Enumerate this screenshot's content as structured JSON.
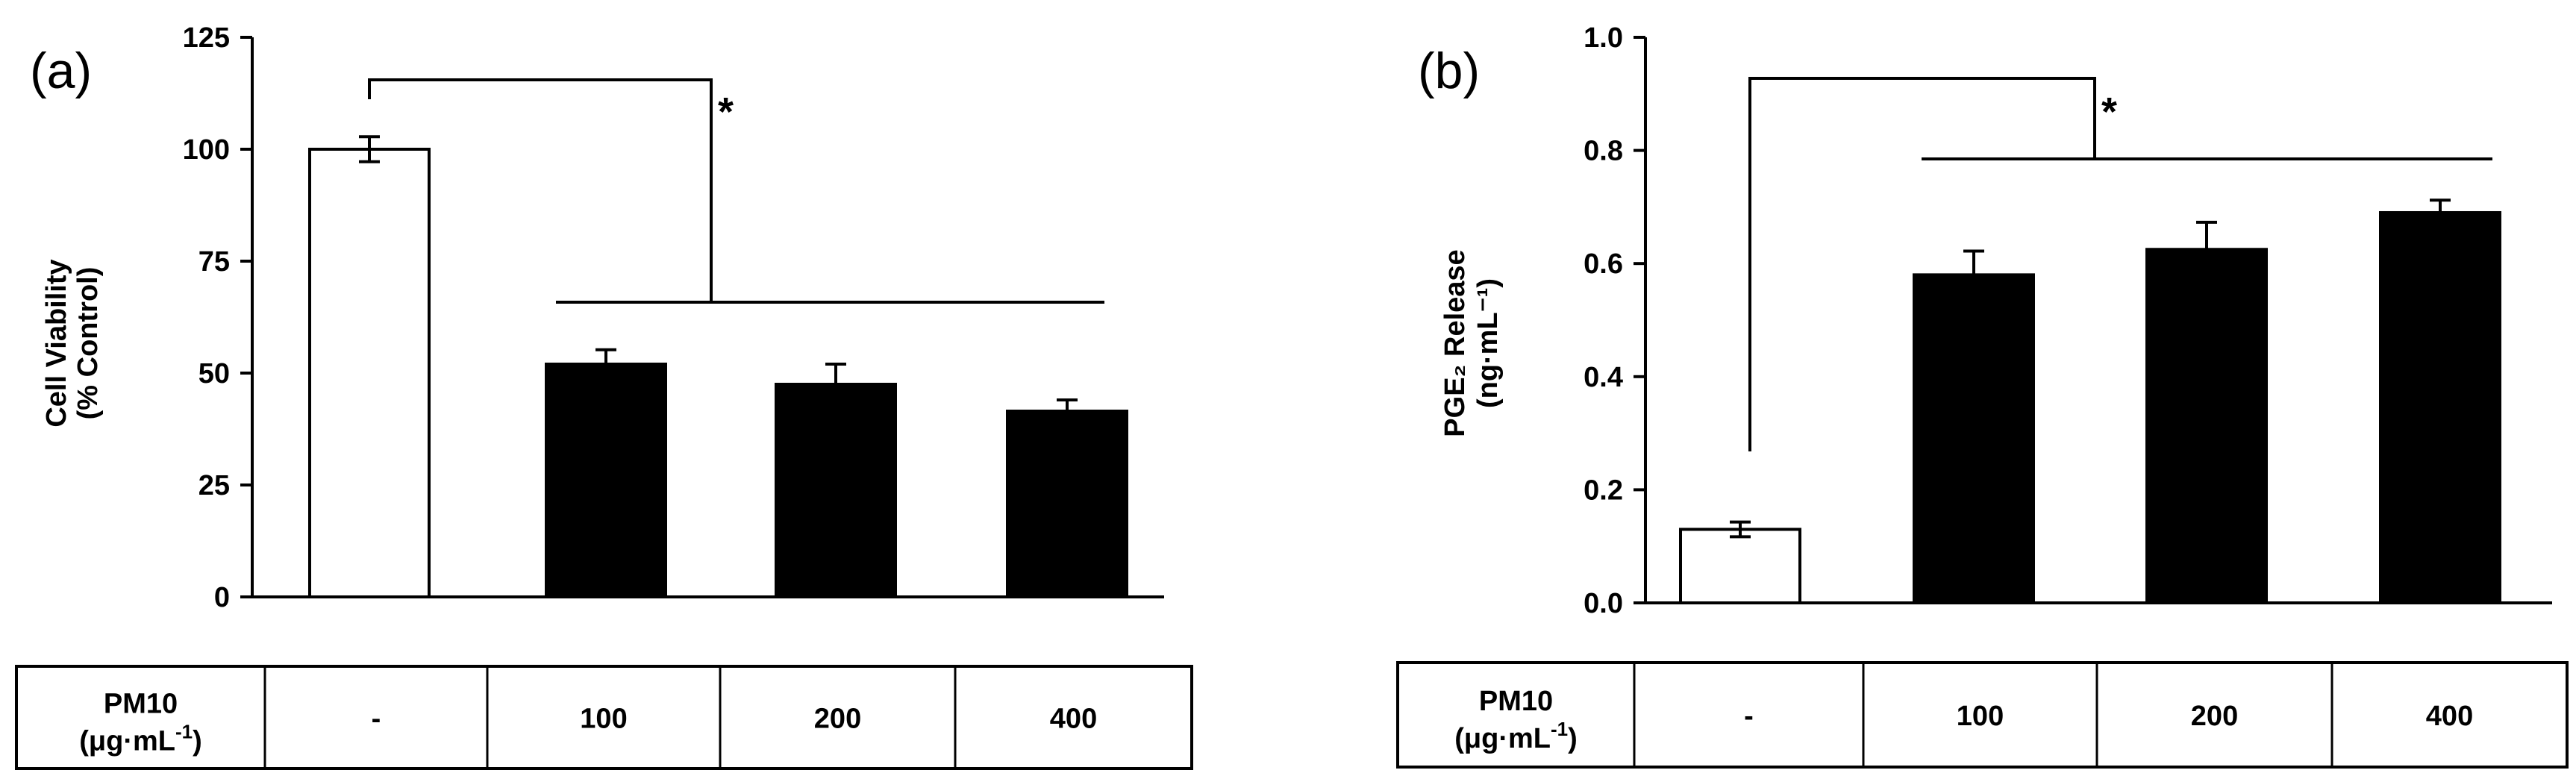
{
  "chart_data": [
    {
      "type": "bar",
      "panel_label": "(a)",
      "ylabel_lines": [
        "Cell Viability",
        "(% Control)"
      ],
      "yticks": [
        "0",
        "25",
        "50",
        "75",
        "100",
        "125"
      ],
      "ylim": [
        0,
        125
      ],
      "categories": [
        "-",
        "100",
        "200",
        "400"
      ],
      "values": [
        100,
        52,
        47.5,
        41.5
      ],
      "errors": [
        2.8,
        3.2,
        4.5,
        2.5
      ],
      "bar_colors": [
        "#ffffff",
        "#000000",
        "#000000",
        "#000000"
      ],
      "significance": "*",
      "table_header": "PM10",
      "table_unit": {
        "pre": "(μg·mL",
        "sup": "-1",
        "post": ")"
      }
    },
    {
      "type": "bar",
      "panel_label": "(b)",
      "ylabel_lines": [
        "PGE₂ Release",
        "(ng·mL⁻¹)"
      ],
      "yticks": [
        "0.0",
        "0.2",
        "0.4",
        "0.6",
        "0.8",
        "1.0"
      ],
      "ylim": [
        0,
        1.0
      ],
      "categories": [
        "-",
        "100",
        "200",
        "400"
      ],
      "values": [
        0.13,
        0.58,
        0.625,
        0.69
      ],
      "errors": [
        0.013,
        0.042,
        0.048,
        0.022
      ],
      "bar_colors": [
        "#ffffff",
        "#000000",
        "#000000",
        "#000000"
      ],
      "significance": "*",
      "table_header": "PM10",
      "table_unit": {
        "pre": "(μg·mL",
        "sup": "-1",
        "post": ")"
      }
    }
  ]
}
